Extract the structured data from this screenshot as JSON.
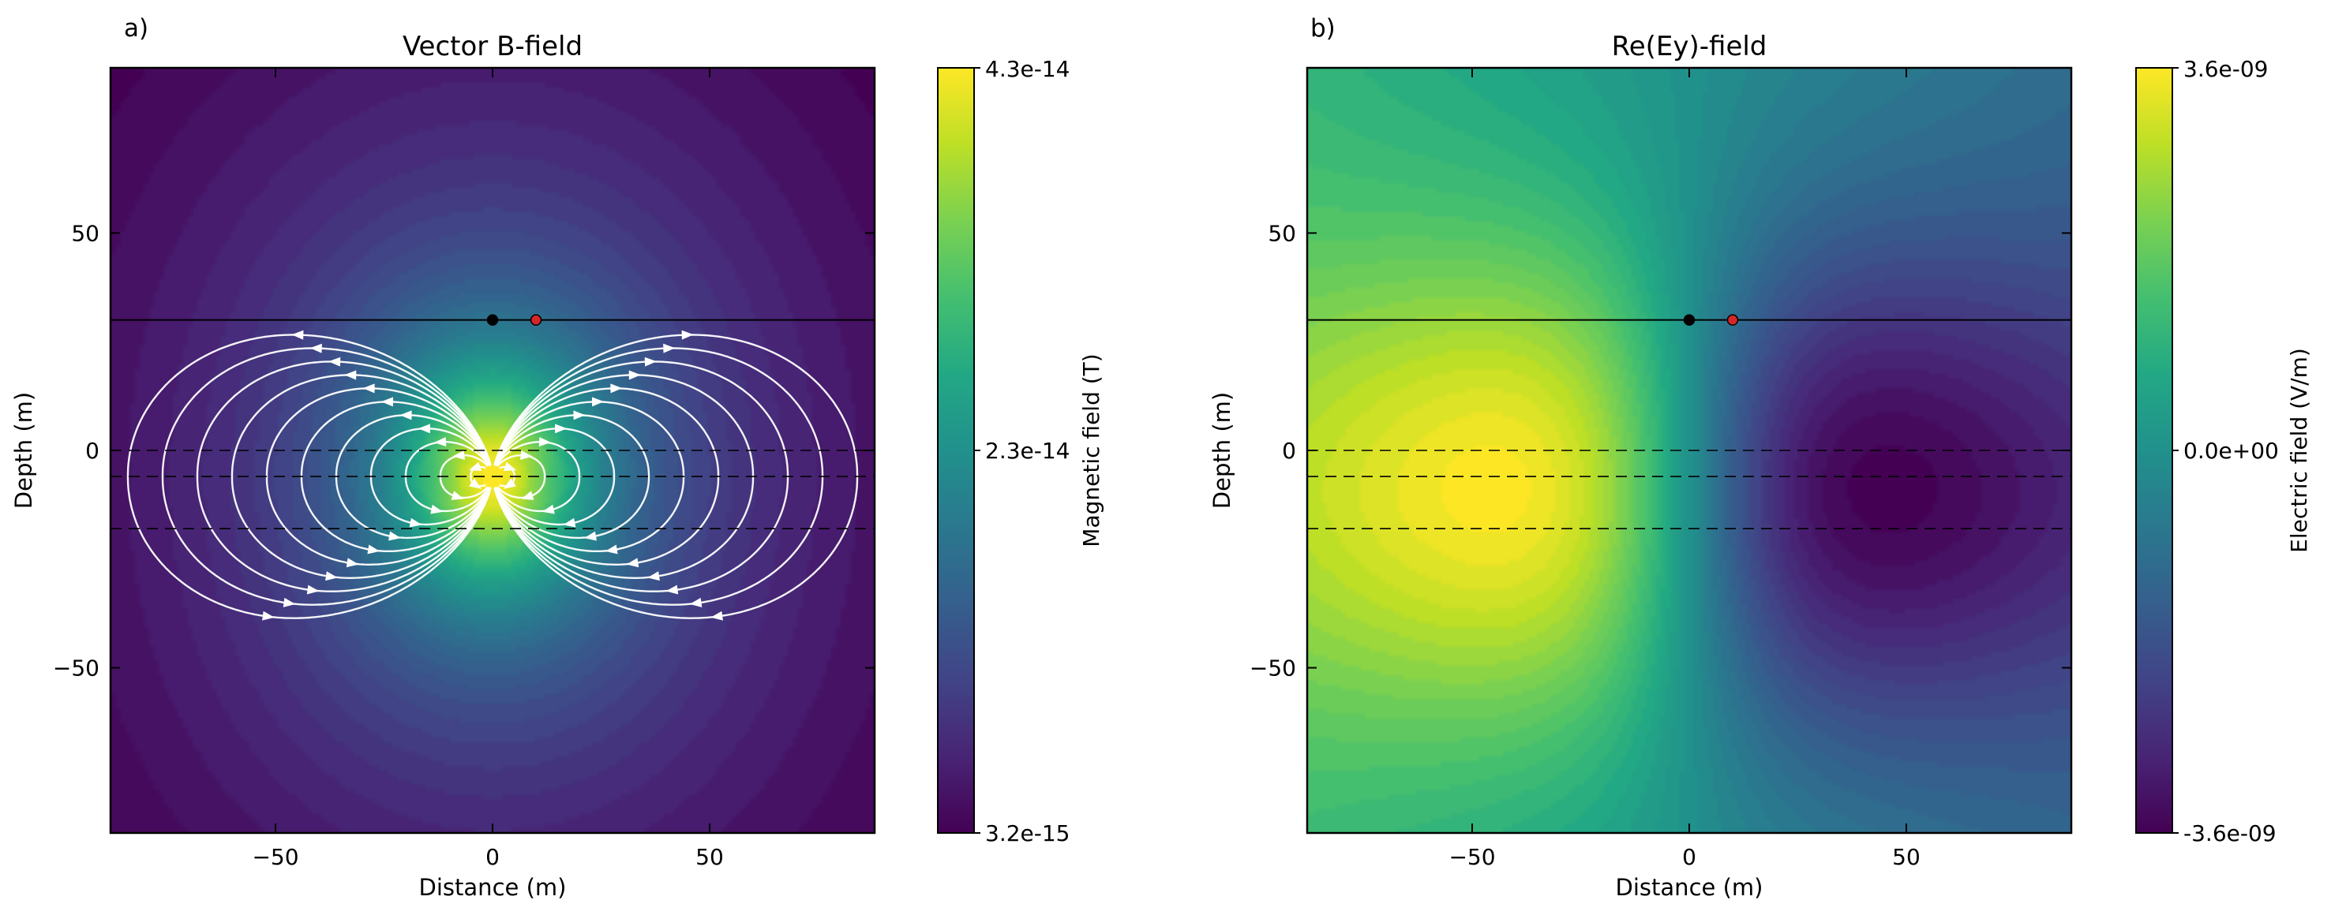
{
  "chart_data": [
    {
      "type": "heatmap",
      "panel_label": "a)",
      "title": "Vector B-field",
      "xlabel": "Distance (m)",
      "ylabel": "Depth (m)",
      "xlim": [
        -88,
        88
      ],
      "ylim": [
        -88,
        88
      ],
      "xticks": [
        -50,
        0,
        50
      ],
      "yticks": [
        -50,
        0,
        50
      ],
      "xtick_labels": [
        "−50",
        "0",
        "50"
      ],
      "ytick_labels": [
        "−50",
        "0",
        "50"
      ],
      "colorbar": {
        "label": "Magnetic field (T)",
        "colormap": "viridis",
        "min_label": "3.2e-15",
        "mid_label": "2.3e-14",
        "max_label": "4.3e-14",
        "min": 3.2e-15,
        "max": 4.3e-14
      },
      "field": "magnetic dipole amplitude with streamlines, peak near (0, -6)",
      "streamlines": true,
      "solid_line_y": 30,
      "dashed_lines_y": [
        0,
        -6,
        -18
      ],
      "markers": [
        {
          "x": 0,
          "y": 30,
          "color": "#000000"
        },
        {
          "x": 10,
          "y": 30,
          "color": "#d62728"
        }
      ]
    },
    {
      "type": "heatmap",
      "panel_label": "b)",
      "title": "Re(Ey)-field",
      "xlabel": "Distance (m)",
      "ylabel": "Depth (m)",
      "xlim": [
        -88,
        88
      ],
      "ylim": [
        -88,
        88
      ],
      "xticks": [
        -50,
        0,
        50
      ],
      "yticks": [
        -50,
        0,
        50
      ],
      "xtick_labels": [
        "−50",
        "0",
        "50"
      ],
      "ytick_labels": [
        "−50",
        "0",
        "50"
      ],
      "colorbar": {
        "label": "Electric field (V/m)",
        "colormap": "viridis",
        "min_label": "-3.6e-09",
        "mid_label": "0.0e+00",
        "max_label": "3.6e-09",
        "min": -3.6e-09,
        "max": 3.6e-09
      },
      "field": "antisymmetric electric field: maximum near (-62, -9), minimum near (62, -9)",
      "streamlines": false,
      "solid_line_y": 30,
      "dashed_lines_y": [
        0,
        -6,
        -18
      ],
      "markers": [
        {
          "x": 0,
          "y": 30,
          "color": "#000000"
        },
        {
          "x": 10,
          "y": 30,
          "color": "#d62728"
        }
      ]
    }
  ]
}
